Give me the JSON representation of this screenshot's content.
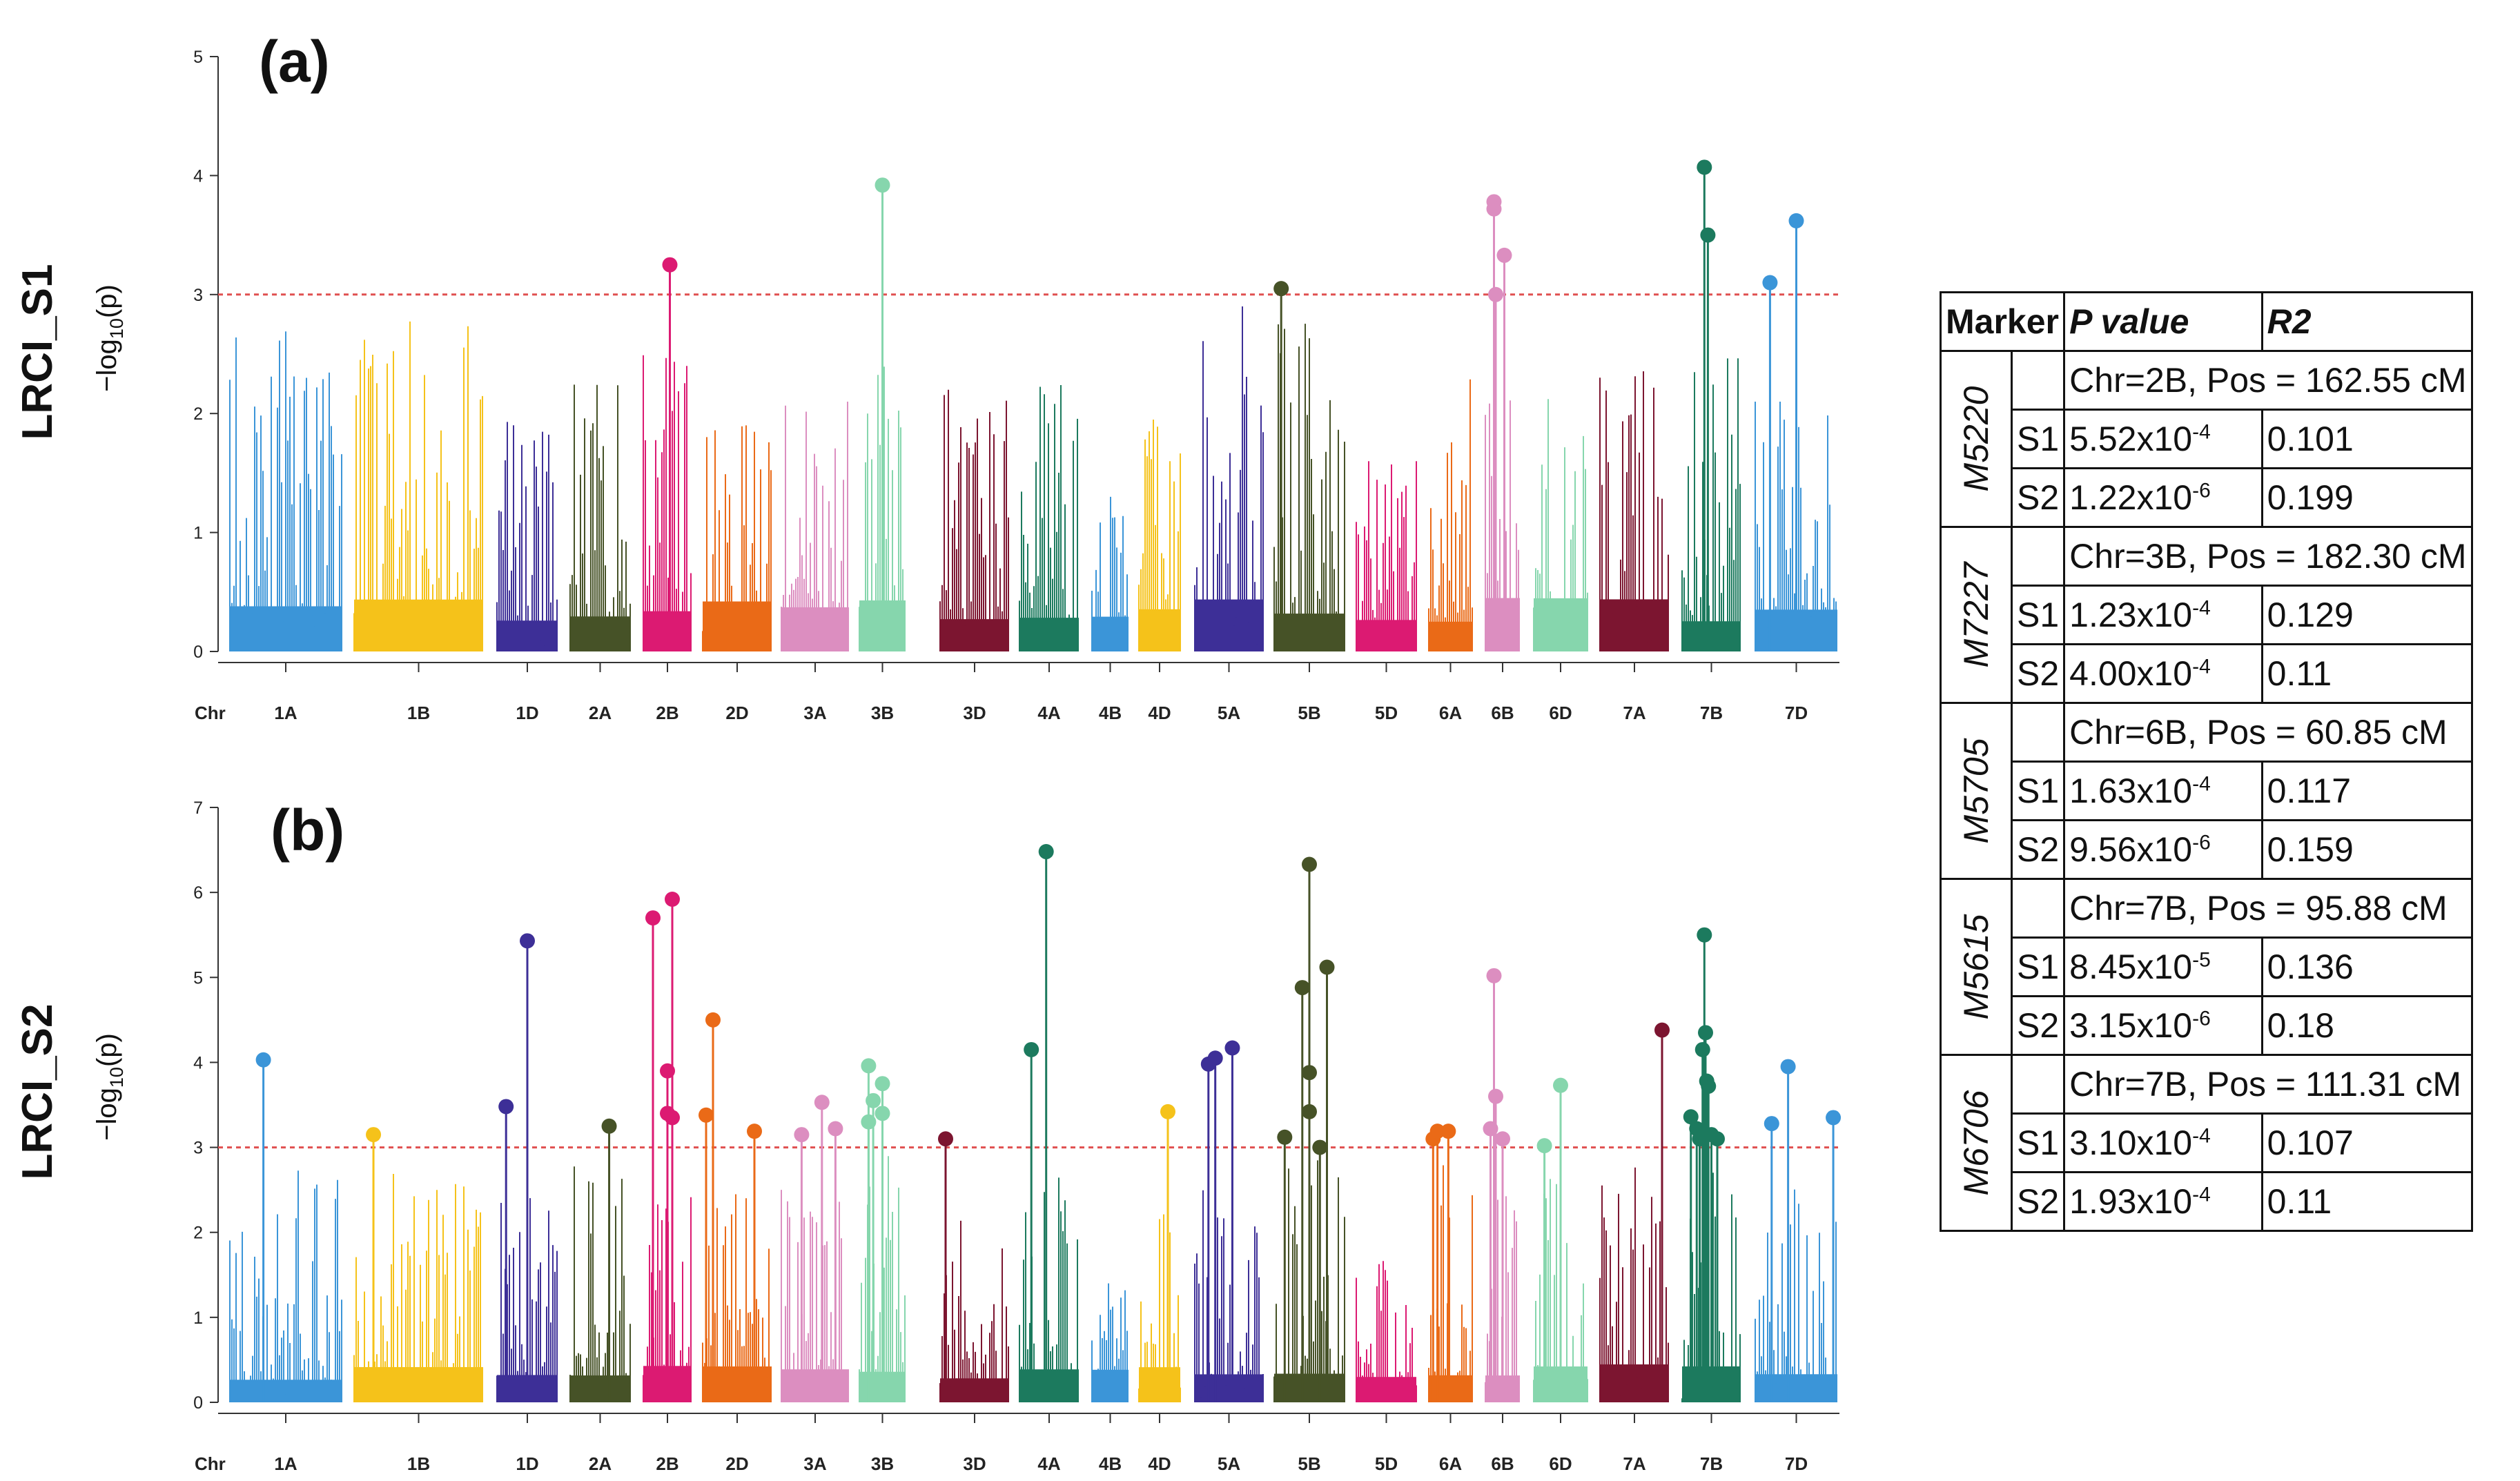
{
  "figure": {
    "threshold": 3,
    "chromosomes": [
      "1A",
      "1B",
      "1D",
      "2A",
      "2B",
      "2D",
      "3A",
      "3B",
      "3D",
      "4A",
      "4B",
      "4D",
      "5A",
      "5B",
      "5D",
      "6A",
      "6B",
      "6D",
      "7A",
      "7B",
      "7D"
    ],
    "chr_axis_label": "Chr",
    "colors": {
      "1A": "#3b95d8",
      "1B": "#f5c21a",
      "1D": "#3d2f97",
      "2A": "#465227",
      "2B": "#dc1a72",
      "2D": "#ea6a17",
      "3A": "#dc8ec0",
      "3B": "#86d6ad",
      "3D": "#7c1530",
      "4A": "#1c7a5e",
      "4B": "#3b95d8",
      "4D": "#f5c21a",
      "5A": "#3d2f97",
      "5B": "#465227",
      "5D": "#dc1a72",
      "6A": "#ea6a17",
      "6B": "#dc8ec0",
      "6D": "#86d6ad",
      "7A": "#7c1530",
      "7B": "#1c7a5e",
      "7D": "#3b95d8"
    },
    "threshold_color": "#e05050"
  },
  "chart_data": [
    {
      "type": "scatter",
      "subtype": "manhattan",
      "panel_label": "(a)",
      "title": "LRCI_S1",
      "ylabel": "−log10(p)",
      "ylabel_prefix": "−log",
      "ylabel_sub": "10",
      "ylabel_suffix": "(p)",
      "xlabel": "Chr",
      "ylim": [
        0,
        5
      ],
      "yticks": [
        "0",
        "1",
        "2",
        "3",
        "4",
        "5"
      ],
      "threshold": 3,
      "max_background": {
        "1A": 3.0,
        "1B": 2.8,
        "1D": 2.0,
        "2A": 2.5,
        "2B": 2.6,
        "2D": 1.9,
        "3A": 2.1,
        "3B": 2.6,
        "3D": 2.2,
        "4A": 2.7,
        "4B": 1.3,
        "4D": 2.1,
        "5A": 2.9,
        "5B": 2.9,
        "5D": 1.6,
        "6A": 2.3,
        "6B": 2.3,
        "6D": 2.5,
        "7A": 2.4,
        "7B": 2.6,
        "7D": 2.1
      },
      "significant_points": [
        {
          "chr": "2B",
          "pos": 0.55,
          "y": 3.25
        },
        {
          "chr": "3B",
          "pos": 0.5,
          "y": 3.92
        },
        {
          "chr": "5B",
          "pos": 0.1,
          "y": 3.05
        },
        {
          "chr": "6B",
          "pos": 0.25,
          "y": 3.78
        },
        {
          "chr": "6B",
          "pos": 0.25,
          "y": 3.72
        },
        {
          "chr": "6B",
          "pos": 0.3,
          "y": 3.0
        },
        {
          "chr": "6B",
          "pos": 0.55,
          "y": 3.33
        },
        {
          "chr": "7B",
          "pos": 0.38,
          "y": 4.07
        },
        {
          "chr": "7B",
          "pos": 0.44,
          "y": 3.5
        },
        {
          "chr": "7D",
          "pos": 0.18,
          "y": 3.1
        },
        {
          "chr": "7D",
          "pos": 0.5,
          "y": 3.62
        }
      ]
    },
    {
      "type": "scatter",
      "subtype": "manhattan",
      "panel_label": "(b)",
      "title": "LRCI_S2",
      "ylabel": "−log10(p)",
      "ylabel_prefix": "−log",
      "ylabel_sub": "10",
      "ylabel_suffix": "(p)",
      "xlabel": "Chr",
      "ylim": [
        0,
        7
      ],
      "yticks": [
        "0",
        "1",
        "2",
        "3",
        "4",
        "5",
        "6",
        "7"
      ],
      "threshold": 3,
      "max_background": {
        "1A": 3.0,
        "1B": 2.7,
        "1D": 2.5,
        "2A": 2.8,
        "2B": 2.5,
        "2D": 2.6,
        "3A": 2.5,
        "3B": 2.9,
        "3D": 2.2,
        "4A": 2.8,
        "4B": 1.4,
        "4D": 2.7,
        "5A": 2.9,
        "5B": 2.9,
        "5D": 1.8,
        "6A": 2.8,
        "6B": 2.6,
        "6D": 2.7,
        "7A": 2.8,
        "7B": 2.9,
        "7D": 2.6
      },
      "significant_points": [
        {
          "chr": "1A",
          "pos": 0.3,
          "y": 4.03
        },
        {
          "chr": "1B",
          "pos": 0.15,
          "y": 3.15
        },
        {
          "chr": "1D",
          "pos": 0.15,
          "y": 3.48
        },
        {
          "chr": "1D",
          "pos": 0.5,
          "y": 5.43
        },
        {
          "chr": "2A",
          "pos": 0.65,
          "y": 3.25
        },
        {
          "chr": "2B",
          "pos": 0.2,
          "y": 5.7
        },
        {
          "chr": "2B",
          "pos": 0.5,
          "y": 3.9
        },
        {
          "chr": "2B",
          "pos": 0.5,
          "y": 3.4
        },
        {
          "chr": "2B",
          "pos": 0.6,
          "y": 5.92
        },
        {
          "chr": "2B",
          "pos": 0.6,
          "y": 3.35
        },
        {
          "chr": "2D",
          "pos": 0.05,
          "y": 3.38
        },
        {
          "chr": "2D",
          "pos": 0.15,
          "y": 4.5
        },
        {
          "chr": "2D",
          "pos": 0.75,
          "y": 3.19
        },
        {
          "chr": "3A",
          "pos": 0.3,
          "y": 3.15
        },
        {
          "chr": "3A",
          "pos": 0.6,
          "y": 3.53
        },
        {
          "chr": "3A",
          "pos": 0.8,
          "y": 3.22
        },
        {
          "chr": "3B",
          "pos": 0.2,
          "y": 3.96
        },
        {
          "chr": "3B",
          "pos": 0.2,
          "y": 3.3
        },
        {
          "chr": "3B",
          "pos": 0.3,
          "y": 3.55
        },
        {
          "chr": "3B",
          "pos": 0.5,
          "y": 3.75
        },
        {
          "chr": "3B",
          "pos": 0.5,
          "y": 3.4
        },
        {
          "chr": "3D",
          "pos": 0.08,
          "y": 3.1
        },
        {
          "chr": "4A",
          "pos": 0.2,
          "y": 4.15
        },
        {
          "chr": "4A",
          "pos": 0.45,
          "y": 6.48
        },
        {
          "chr": "4D",
          "pos": 0.7,
          "y": 3.42
        },
        {
          "chr": "5A",
          "pos": 0.2,
          "y": 3.98
        },
        {
          "chr": "5A",
          "pos": 0.3,
          "y": 4.05
        },
        {
          "chr": "5A",
          "pos": 0.55,
          "y": 4.17
        },
        {
          "chr": "5B",
          "pos": 0.15,
          "y": 3.12
        },
        {
          "chr": "5B",
          "pos": 0.4,
          "y": 4.88
        },
        {
          "chr": "5B",
          "pos": 0.5,
          "y": 6.33
        },
        {
          "chr": "5B",
          "pos": 0.5,
          "y": 3.88
        },
        {
          "chr": "5B",
          "pos": 0.5,
          "y": 3.42
        },
        {
          "chr": "5B",
          "pos": 0.65,
          "y": 3.0
        },
        {
          "chr": "5B",
          "pos": 0.75,
          "y": 5.12
        },
        {
          "chr": "6A",
          "pos": 0.1,
          "y": 3.1
        },
        {
          "chr": "6A",
          "pos": 0.2,
          "y": 3.19
        },
        {
          "chr": "6A",
          "pos": 0.45,
          "y": 3.19
        },
        {
          "chr": "6B",
          "pos": 0.15,
          "y": 3.22
        },
        {
          "chr": "6B",
          "pos": 0.25,
          "y": 5.02
        },
        {
          "chr": "6B",
          "pos": 0.3,
          "y": 3.6
        },
        {
          "chr": "6B",
          "pos": 0.5,
          "y": 3.1
        },
        {
          "chr": "6D",
          "pos": 0.2,
          "y": 3.02
        },
        {
          "chr": "6D",
          "pos": 0.5,
          "y": 3.73
        },
        {
          "chr": "7A",
          "pos": 0.9,
          "y": 4.38
        },
        {
          "chr": "7B",
          "pos": 0.15,
          "y": 3.36
        },
        {
          "chr": "7B",
          "pos": 0.25,
          "y": 3.22
        },
        {
          "chr": "7B",
          "pos": 0.3,
          "y": 3.1
        },
        {
          "chr": "7B",
          "pos": 0.35,
          "y": 4.15
        },
        {
          "chr": "7B",
          "pos": 0.38,
          "y": 5.5
        },
        {
          "chr": "7B",
          "pos": 0.4,
          "y": 4.35
        },
        {
          "chr": "7B",
          "pos": 0.42,
          "y": 3.78
        },
        {
          "chr": "7B",
          "pos": 0.45,
          "y": 3.72
        },
        {
          "chr": "7B",
          "pos": 0.5,
          "y": 3.15
        },
        {
          "chr": "7B",
          "pos": 0.6,
          "y": 3.1
        },
        {
          "chr": "7D",
          "pos": 0.2,
          "y": 3.28
        },
        {
          "chr": "7D",
          "pos": 0.4,
          "y": 3.95
        },
        {
          "chr": "7D",
          "pos": 0.95,
          "y": 3.35
        }
      ]
    }
  ],
  "table": {
    "headers": {
      "marker": "Marker",
      "pvalue": "P value",
      "r2": "R2"
    },
    "groups": [
      {
        "marker": "M5220",
        "location": "Chr=2B, Pos = 162.55 cM",
        "rows": [
          {
            "s": "S1",
            "p_base": "5.52x10",
            "p_exp": "-4",
            "r2": "0.101"
          },
          {
            "s": "S2",
            "p_base": "1.22x10",
            "p_exp": "-6",
            "r2": "0.199"
          }
        ]
      },
      {
        "marker": "M7227",
        "location": "Chr=3B, Pos = 182.30 cM",
        "rows": [
          {
            "s": "S1",
            "p_base": "1.23x10",
            "p_exp": "-4",
            "r2": "0.129"
          },
          {
            "s": "S2",
            "p_base": "4.00x10",
            "p_exp": "-4",
            "r2": "0.11"
          }
        ]
      },
      {
        "marker": "M5705",
        "location": "Chr=6B, Pos = 60.85 cM",
        "rows": [
          {
            "s": "S1",
            "p_base": "1.63x10",
            "p_exp": "-4",
            "r2": "0.117"
          },
          {
            "s": "S2",
            "p_base": "9.56x10",
            "p_exp": "-6",
            "r2": "0.159"
          }
        ]
      },
      {
        "marker": "M5615",
        "location": "Chr=7B, Pos = 95.88 cM",
        "rows": [
          {
            "s": "S1",
            "p_base": "8.45x10",
            "p_exp": "-5",
            "r2": "0.136"
          },
          {
            "s": "S2",
            "p_base": "3.15x10",
            "p_exp": "-6",
            "r2": "0.18"
          }
        ]
      },
      {
        "marker": "M6706",
        "location": "Chr=7B, Pos = 111.31 cM",
        "rows": [
          {
            "s": "S1",
            "p_base": "3.10x10",
            "p_exp": "-4",
            "r2": "0.107"
          },
          {
            "s": "S2",
            "p_base": "1.93x10",
            "p_exp": "-4",
            "r2": "0.11"
          }
        ]
      }
    ]
  }
}
